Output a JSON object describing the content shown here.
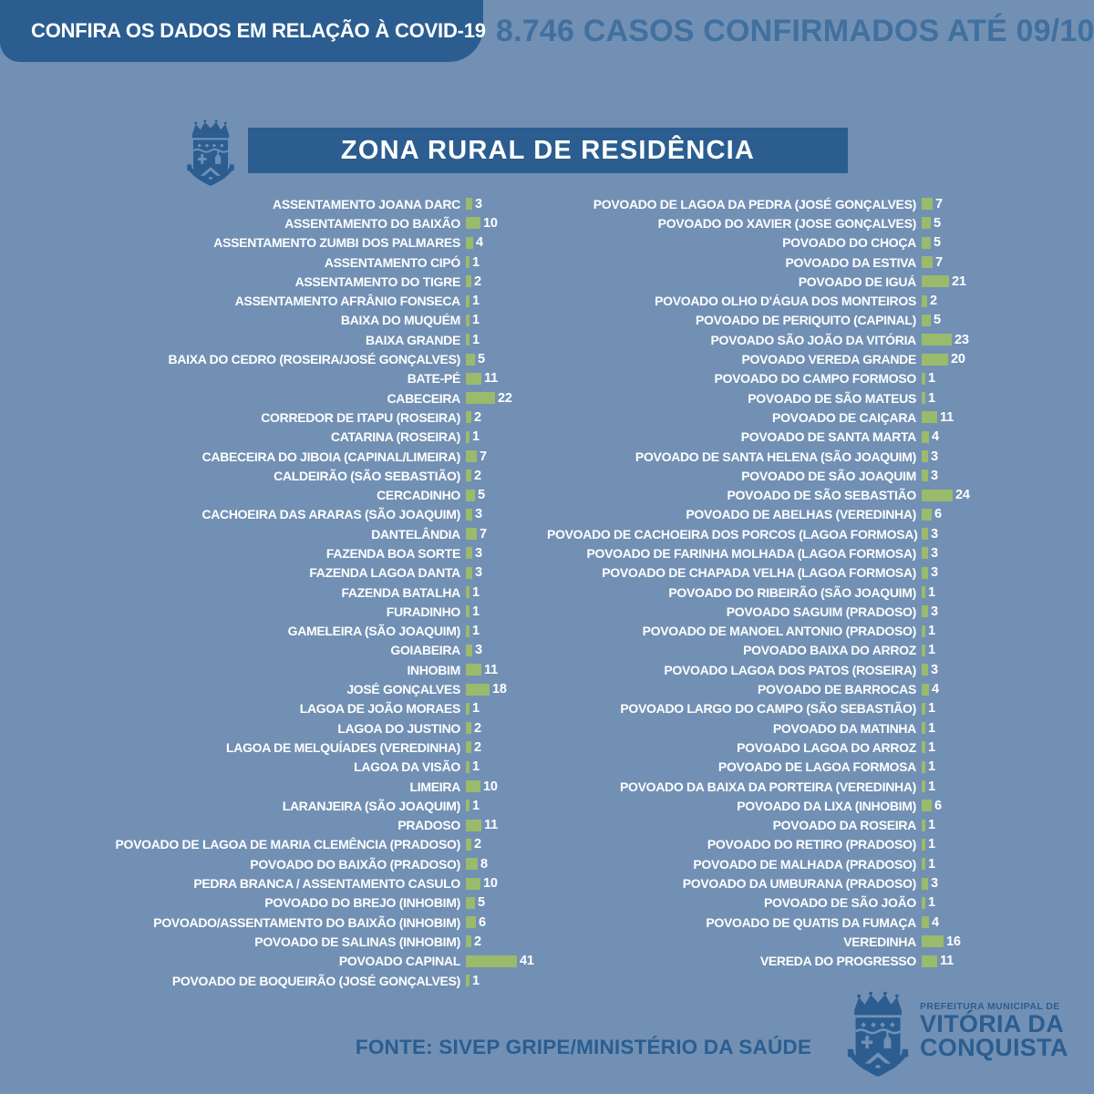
{
  "header": {
    "badge": "CONFIRA OS DADOS EM RELAÇÃO À COVID-19",
    "confirmed": "8.746 CASOS CONFIRMADOS ATÉ 09/10"
  },
  "title": "ZONA RURAL DE RESIDÊNCIA",
  "footer": {
    "source": "FONTE: SIVEP GRIPE/MINISTÉRIO DA SAÚDE",
    "logo": {
      "line1": "PREFEITURA MUNICIPAL DE",
      "line2": "VITÓRIA DA",
      "line3": "CONQUISTA"
    }
  },
  "colors": {
    "background": "#7190b4",
    "dark_blue": "#2b5d90",
    "confirmed_text_blue": "#41709f",
    "bar_green": "#9aba6c",
    "text_white": "#ffffff"
  },
  "chart_data": {
    "type": "bar",
    "orientation": "horizontal",
    "title": "ZONA RURAL DE RESIDÊNCIA",
    "value_unit": "casos confirmados",
    "bar_color": "#9aba6c",
    "legend": false,
    "columns": [
      {
        "name": "left",
        "items": [
          {
            "label": "ASSENTAMENTO JOANA DARC",
            "value": 3
          },
          {
            "label": "ASSENTAMENTO DO BAIXÃO",
            "value": 10
          },
          {
            "label": "ASSENTAMENTO ZUMBI DOS PALMARES",
            "value": 4
          },
          {
            "label": "ASSENTAMENTO CIPÓ",
            "value": 1
          },
          {
            "label": "ASSENTAMENTO DO TIGRE",
            "value": 2
          },
          {
            "label": "ASSENTAMENTO AFRÂNIO FONSECA",
            "value": 1
          },
          {
            "label": "BAIXA DO MUQUÉM",
            "value": 1
          },
          {
            "label": "BAIXA GRANDE",
            "value": 1
          },
          {
            "label": "BAIXA DO CEDRO (ROSEIRA/JOSÉ GONÇALVES)",
            "value": 5
          },
          {
            "label": "BATE-PÉ",
            "value": 11
          },
          {
            "label": "CABECEIRA",
            "value": 22
          },
          {
            "label": "CORREDOR DE ITAPU (ROSEIRA)",
            "value": 2
          },
          {
            "label": "CATARINA (ROSEIRA)",
            "value": 1
          },
          {
            "label": "CABECEIRA DO JIBOIA (CAPINAL/LIMEIRA)",
            "value": 7
          },
          {
            "label": "CALDEIRÃO (SÃO SEBASTIÃO)",
            "value": 2
          },
          {
            "label": "CERCADINHO",
            "value": 5
          },
          {
            "label": "CACHOEIRA DAS ARARAS (SÃO JOAQUIM)",
            "value": 3
          },
          {
            "label": "DANTELÂNDIA",
            "value": 7
          },
          {
            "label": "FAZENDA BOA SORTE",
            "value": 3
          },
          {
            "label": "FAZENDA LAGOA DANTA",
            "value": 3
          },
          {
            "label": "FAZENDA BATALHA",
            "value": 1
          },
          {
            "label": "FURADINHO",
            "value": 1
          },
          {
            "label": "GAMELEIRA (SÃO JOAQUIM)",
            "value": 1
          },
          {
            "label": "GOIABEIRA",
            "value": 3
          },
          {
            "label": "INHOBIM",
            "value": 11
          },
          {
            "label": "JOSÉ GONÇALVES",
            "value": 18
          },
          {
            "label": "LAGOA DE JOÃO MORAES",
            "value": 1
          },
          {
            "label": "LAGOA DO JUSTINO",
            "value": 2
          },
          {
            "label": "LAGOA DE MELQUÍADES (VEREDINHA)",
            "value": 2
          },
          {
            "label": "LAGOA DA VISÃO",
            "value": 1
          },
          {
            "label": "LIMEIRA",
            "value": 10
          },
          {
            "label": "LARANJEIRA (SÃO JOAQUIM)",
            "value": 1
          },
          {
            "label": "PRADOSO",
            "value": 11
          },
          {
            "label": "POVOADO DE LAGOA DE MARIA CLEMÊNCIA (PRADOSO)",
            "value": 2
          },
          {
            "label": "POVOADO DO BAIXÃO (PRADOSO)",
            "value": 8
          },
          {
            "label": "PEDRA BRANCA / ASSENTAMENTO CASULO",
            "value": 10
          },
          {
            "label": "POVOADO DO BREJO (INHOBIM)",
            "value": 5
          },
          {
            "label": "POVOADO/ASSENTAMENTO DO BAIXÃO (INHOBIM)",
            "value": 6
          },
          {
            "label": "POVOADO DE SALINAS (INHOBIM)",
            "value": 2
          },
          {
            "label": "POVOADO CAPINAL",
            "value": 41
          },
          {
            "label": "POVOADO DE BOQUEIRÃO (JOSÉ GONÇALVES)",
            "value": 1
          }
        ]
      },
      {
        "name": "right",
        "items": [
          {
            "label": "POVOADO DE LAGOA DA PEDRA (JOSÉ GONÇALVES)",
            "value": 7
          },
          {
            "label": "POVOADO DO XAVIER (JOSE GONÇALVES)",
            "value": 5
          },
          {
            "label": "POVOADO DO CHOÇA",
            "value": 5
          },
          {
            "label": "POVOADO DA ESTIVA",
            "value": 7
          },
          {
            "label": "POVOADO DE IGUÁ",
            "value": 21
          },
          {
            "label": "POVOADO OLHO D'ÁGUA DOS MONTEIROS",
            "value": 2
          },
          {
            "label": "POVOADO DE PERIQUITO (CAPINAL)",
            "value": 5
          },
          {
            "label": "POVOADO SÃO JOÃO DA VITÓRIA",
            "value": 23
          },
          {
            "label": "POVOADO VEREDA GRANDE",
            "value": 20
          },
          {
            "label": "POVOADO DO CAMPO FORMOSO",
            "value": 1
          },
          {
            "label": "POVOADO DE SÃO MATEUS",
            "value": 1
          },
          {
            "label": "POVOADO DE CAIÇARA",
            "value": 11
          },
          {
            "label": "POVOADO DE SANTA MARTA",
            "value": 4
          },
          {
            "label": "POVOADO DE SANTA HELENA (SÃO JOAQUIM)",
            "value": 3
          },
          {
            "label": "POVOADO DE SÃO JOAQUIM",
            "value": 3
          },
          {
            "label": "POVOADO DE SÃO SEBASTIÃO",
            "value": 24
          },
          {
            "label": "POVOADO DE ABELHAS (VEREDINHA)",
            "value": 6
          },
          {
            "label": "POVOADO DE CACHOEIRA DOS PORCOS (LAGOA FORMOSA)",
            "value": 3
          },
          {
            "label": "POVOADO DE FARINHA MOLHADA (LAGOA FORMOSA)",
            "value": 3
          },
          {
            "label": "POVOADO DE CHAPADA VELHA (LAGOA FORMOSA)",
            "value": 3
          },
          {
            "label": "POVOADO DO RIBEIRÃO (SÃO JOAQUIM)",
            "value": 1
          },
          {
            "label": "POVOADO SAGUIM (PRADOSO)",
            "value": 3
          },
          {
            "label": "POVOADO DE MANOEL ANTONIO (PRADOSO)",
            "value": 1
          },
          {
            "label": "POVOADO BAIXA DO ARROZ",
            "value": 1
          },
          {
            "label": "POVOADO LAGOA DOS PATOS (ROSEIRA)",
            "value": 3
          },
          {
            "label": "POVOADO DE BARROCAS",
            "value": 4
          },
          {
            "label": "POVOADO LARGO DO CAMPO (SÃO SEBASTIÃO)",
            "value": 1
          },
          {
            "label": "POVOADO DA MATINHA",
            "value": 1
          },
          {
            "label": "POVOADO LAGOA DO ARROZ",
            "value": 1
          },
          {
            "label": "POVOADO DE LAGOA FORMOSA",
            "value": 1
          },
          {
            "label": "POVOADO DA BAIXA DA PORTEIRA (VEREDINHA)",
            "value": 1
          },
          {
            "label": "POVOADO DA LIXA (INHOBIM)",
            "value": 6
          },
          {
            "label": "POVOADO DA ROSEIRA",
            "value": 1
          },
          {
            "label": "POVOADO DO RETIRO (PRADOSO)",
            "value": 1
          },
          {
            "label": "POVOADO DE MALHADA (PRADOSO)",
            "value": 1
          },
          {
            "label": "POVOADO DA UMBURANA (PRADOSO)",
            "value": 3
          },
          {
            "label": "POVOADO DE SÃO JOÃO",
            "value": 1
          },
          {
            "label": "POVOADO DE QUATIS DA FUMAÇA",
            "value": 4
          },
          {
            "label": "VEREDINHA",
            "value": 16
          },
          {
            "label": "VEREDA DO PROGRESSO",
            "value": 11
          }
        ]
      }
    ]
  }
}
